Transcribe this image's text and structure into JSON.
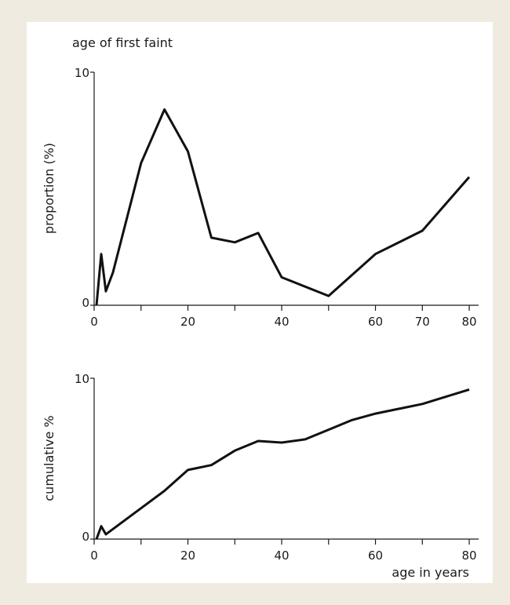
{
  "chart_data": [
    {
      "type": "line",
      "title": "age of first faint",
      "ylabel": "proportion (%)",
      "xlabel": "",
      "xlim": [
        0,
        82
      ],
      "ylim": [
        0,
        10
      ],
      "x_ticks": [
        0,
        20,
        40,
        60,
        70,
        80
      ],
      "x_minor_ticks": [
        10,
        30,
        50
      ],
      "y_ticks": [
        0,
        10
      ],
      "grid": false,
      "series": [
        {
          "x": [
            0.5,
            1.5,
            2.5,
            4,
            10,
            15,
            20,
            25,
            30,
            35,
            40,
            50,
            60,
            70,
            80
          ],
          "y": [
            0,
            2.2,
            0.6,
            1.4,
            6.1,
            8.4,
            6.6,
            2.9,
            2.7,
            3.1,
            1.2,
            0.4,
            2.2,
            3.2,
            5.5
          ]
        }
      ]
    },
    {
      "type": "line",
      "title": "",
      "ylabel": "cumulative %",
      "xlabel": "age in years",
      "xlim": [
        0,
        82
      ],
      "ylim": [
        0,
        10
      ],
      "x_ticks": [
        0,
        20,
        40,
        60,
        80
      ],
      "x_minor_ticks": [
        10,
        30,
        50,
        70
      ],
      "y_ticks": [
        0,
        10
      ],
      "grid": false,
      "series": [
        {
          "x": [
            0.5,
            1.5,
            2.5,
            15,
            20,
            25,
            30,
            35,
            40,
            45,
            50,
            55,
            60,
            70,
            80
          ],
          "y": [
            0,
            0.8,
            0.3,
            3.0,
            4.3,
            4.6,
            5.5,
            6.1,
            6.0,
            6.2,
            6.8,
            7.4,
            7.8,
            8.4,
            9.3
          ]
        }
      ]
    }
  ]
}
